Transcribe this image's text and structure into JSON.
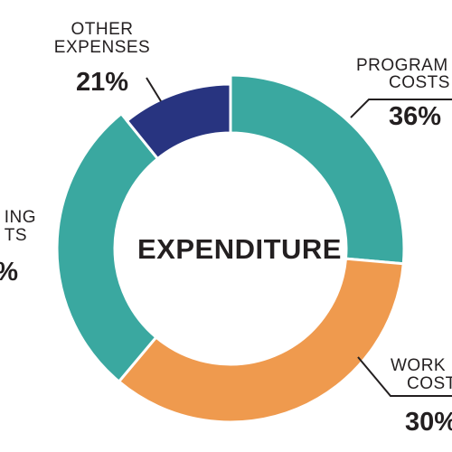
{
  "chart_data": {
    "type": "pie",
    "title": "EXPENDITURE",
    "slices": [
      {
        "label_lines": [
          "PROGRAM",
          "COSTS"
        ],
        "value": 36,
        "value_label": "36%",
        "color": "#3aa8a0"
      },
      {
        "label_lines": [
          "WORK",
          "COSTS"
        ],
        "value": 30,
        "value_label": "30%",
        "color": "#ef9a4e"
      },
      {
        "label_lines": [
          "ING",
          "TS"
        ],
        "value_label": "%",
        "color": "#3aa8a0"
      },
      {
        "label_lines": [
          "OTHER",
          "EXPENSES"
        ],
        "value": 21,
        "value_label": "21%",
        "color": "#283480"
      }
    ]
  }
}
